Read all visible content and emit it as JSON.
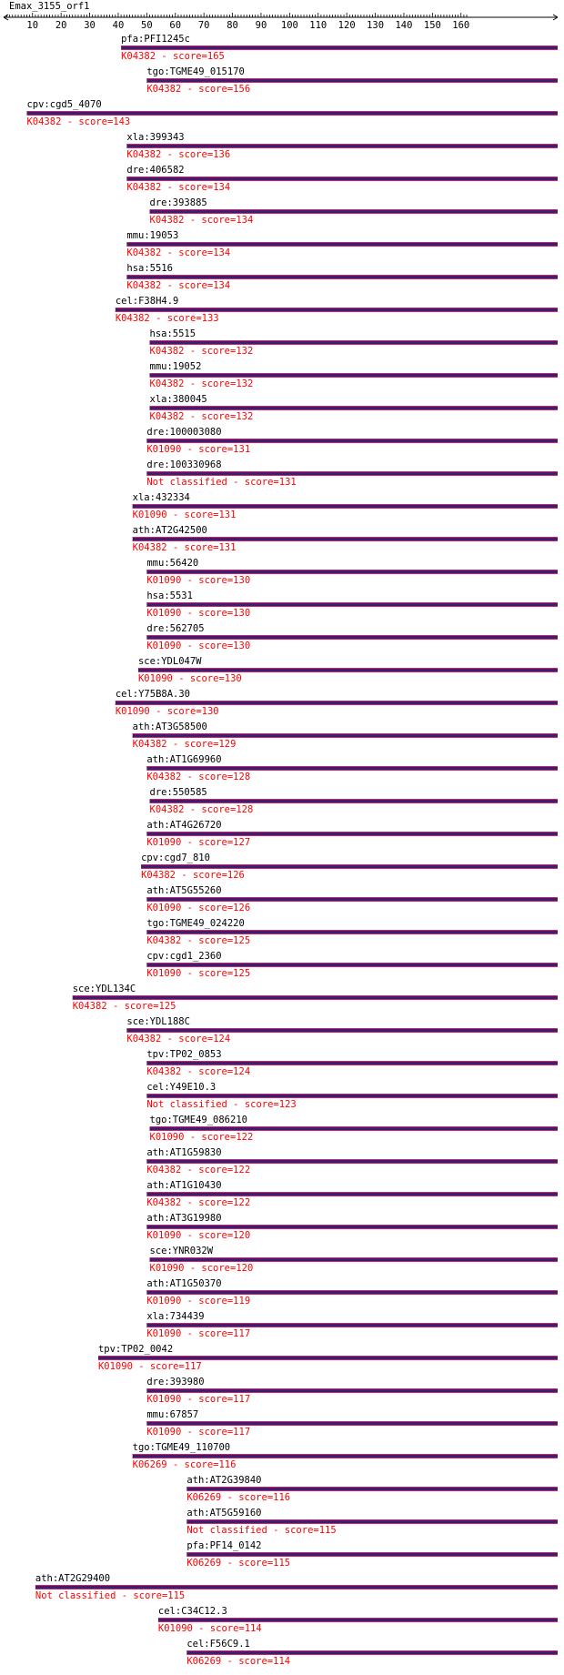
{
  "query": "Emax_3155_orf1",
  "axis": {
    "min": 1,
    "max": 162,
    "ticks": [
      "10",
      "20",
      "30",
      "40",
      "50",
      "60",
      "70",
      "80",
      "90",
      "100",
      "110",
      "120",
      "130",
      "140",
      "150",
      "160"
    ]
  },
  "colors": {
    "bar": "#3a1f73",
    "bar_edge": "#cc2266",
    "label": "#000000",
    "annotation": "#ff0000"
  },
  "hits": [
    {
      "name": "pfa:PFI1245c",
      "start": 41,
      "annotation": "K04382 - score=165"
    },
    {
      "name": "tgo:TGME49_015170",
      "start": 50,
      "annotation": "K04382 - score=156"
    },
    {
      "name": "cpv:cgd5_4070",
      "start": 8,
      "annotation": "K04382 - score=143"
    },
    {
      "name": "xla:399343",
      "start": 43,
      "annotation": "K04382 - score=136"
    },
    {
      "name": "dre:406582",
      "start": 43,
      "annotation": "K04382 - score=134"
    },
    {
      "name": "dre:393885",
      "start": 51,
      "annotation": "K04382 - score=134"
    },
    {
      "name": "mmu:19053",
      "start": 43,
      "annotation": "K04382 - score=134"
    },
    {
      "name": "hsa:5516",
      "start": 43,
      "annotation": "K04382 - score=134"
    },
    {
      "name": "cel:F38H4.9",
      "start": 39,
      "annotation": "K04382 - score=133"
    },
    {
      "name": "hsa:5515",
      "start": 51,
      "annotation": "K04382 - score=132"
    },
    {
      "name": "mmu:19052",
      "start": 51,
      "annotation": "K04382 - score=132"
    },
    {
      "name": "xla:380045",
      "start": 51,
      "annotation": "K04382 - score=132"
    },
    {
      "name": "dre:100003080",
      "start": 50,
      "annotation": "K01090 - score=131"
    },
    {
      "name": "dre:100330968",
      "start": 50,
      "annotation": "Not classified - score=131"
    },
    {
      "name": "xla:432334",
      "start": 45,
      "annotation": "K01090 - score=131"
    },
    {
      "name": "ath:AT2G42500",
      "start": 45,
      "annotation": "K04382 - score=131"
    },
    {
      "name": "mmu:56420",
      "start": 50,
      "annotation": "K01090 - score=130"
    },
    {
      "name": "hsa:5531",
      "start": 50,
      "annotation": "K01090 - score=130"
    },
    {
      "name": "dre:562705",
      "start": 50,
      "annotation": "K01090 - score=130"
    },
    {
      "name": "sce:YDL047W",
      "start": 47,
      "annotation": "K01090 - score=130"
    },
    {
      "name": "cel:Y75B8A.30",
      "start": 39,
      "annotation": "K01090 - score=130"
    },
    {
      "name": "ath:AT3G58500",
      "start": 45,
      "annotation": "K04382 - score=129"
    },
    {
      "name": "ath:AT1G69960",
      "start": 50,
      "annotation": "K04382 - score=128"
    },
    {
      "name": "dre:550585",
      "start": 51,
      "annotation": "K04382 - score=128"
    },
    {
      "name": "ath:AT4G26720",
      "start": 50,
      "annotation": "K01090 - score=127"
    },
    {
      "name": "cpv:cgd7_810",
      "start": 48,
      "annotation": "K04382 - score=126"
    },
    {
      "name": "ath:AT5G55260",
      "start": 50,
      "annotation": "K01090 - score=126"
    },
    {
      "name": "tgo:TGME49_024220",
      "start": 50,
      "annotation": "K04382 - score=125"
    },
    {
      "name": "cpv:cgd1_2360",
      "start": 50,
      "annotation": "K01090 - score=125"
    },
    {
      "name": "sce:YDL134C",
      "start": 24,
      "annotation": "K04382 - score=125"
    },
    {
      "name": "sce:YDL188C",
      "start": 43,
      "annotation": "K04382 - score=124"
    },
    {
      "name": "tpv:TP02_0853",
      "start": 50,
      "annotation": "K04382 - score=124"
    },
    {
      "name": "cel:Y49E10.3",
      "start": 50,
      "annotation": "Not classified - score=123"
    },
    {
      "name": "tgo:TGME49_086210",
      "start": 51,
      "annotation": "K01090 - score=122"
    },
    {
      "name": "ath:AT1G59830",
      "start": 50,
      "annotation": "K04382 - score=122"
    },
    {
      "name": "ath:AT1G10430",
      "start": 50,
      "annotation": "K04382 - score=122"
    },
    {
      "name": "ath:AT3G19980",
      "start": 50,
      "annotation": "K01090 - score=120"
    },
    {
      "name": "sce:YNR032W",
      "start": 51,
      "annotation": "K01090 - score=120"
    },
    {
      "name": "ath:AT1G50370",
      "start": 50,
      "annotation": "K01090 - score=119"
    },
    {
      "name": "xla:734439",
      "start": 50,
      "annotation": "K01090 - score=117"
    },
    {
      "name": "tpv:TP02_0042",
      "start": 33,
      "annotation": "K01090 - score=117"
    },
    {
      "name": "dre:393980",
      "start": 50,
      "annotation": "K01090 - score=117"
    },
    {
      "name": "mmu:67857",
      "start": 50,
      "annotation": "K01090 - score=117"
    },
    {
      "name": "tgo:TGME49_110700",
      "start": 45,
      "annotation": "K06269 - score=116"
    },
    {
      "name": "ath:AT2G39840",
      "start": 64,
      "annotation": "K06269 - score=116"
    },
    {
      "name": "ath:AT5G59160",
      "start": 64,
      "annotation": "Not classified - score=115"
    },
    {
      "name": "pfa:PF14_0142",
      "start": 64,
      "annotation": "K06269 - score=115"
    },
    {
      "name": "ath:AT2G29400",
      "start": 11,
      "annotation": "Not classified - score=115"
    },
    {
      "name": "cel:C34C12.3",
      "start": 54,
      "annotation": "K01090 - score=114"
    },
    {
      "name": "cel:F56C9.1",
      "start": 64,
      "annotation": "K06269 - score=114"
    }
  ]
}
